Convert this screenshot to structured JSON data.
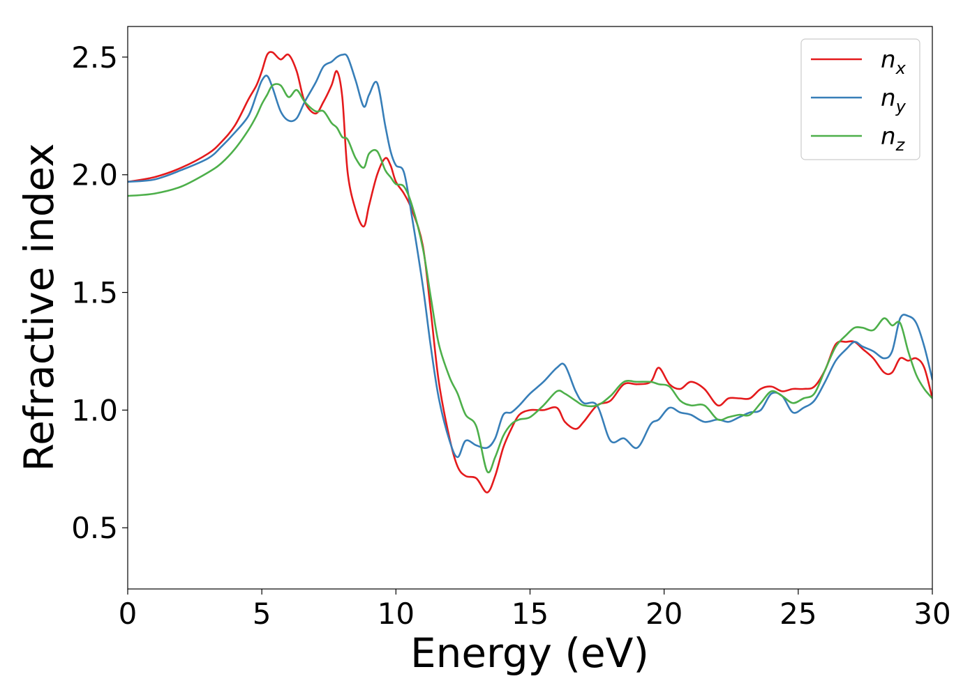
{
  "chart_data": {
    "type": "line",
    "title": "",
    "xlabel": "Energy (eV)",
    "ylabel": "Refractive index",
    "xlim": [
      0,
      30
    ],
    "ylim": [
      0.24,
      2.63
    ],
    "xticks": [
      0,
      5,
      10,
      15,
      20,
      25,
      30
    ],
    "xtick_labels": [
      "0",
      "5",
      "10",
      "15",
      "20",
      "25",
      "30"
    ],
    "yticks": [
      0.5,
      1.0,
      1.5,
      2.0,
      2.5
    ],
    "ytick_labels": [
      "0.5",
      "1.0",
      "1.5",
      "2.0",
      "2.5"
    ],
    "grid": false,
    "legend_position": "top-right",
    "series": [
      {
        "name": "n_x",
        "label_base": "n",
        "label_sub": "x",
        "color": "#e41a1c",
        "x": [
          0,
          1,
          2,
          3,
          3.5,
          4,
          4.5,
          4.8,
          5.0,
          5.2,
          5.4,
          5.7,
          6.0,
          6.3,
          6.6,
          7.0,
          7.3,
          7.6,
          7.8,
          8.0,
          8.2,
          8.5,
          8.8,
          9.0,
          9.3,
          9.6,
          9.8,
          10.0,
          10.3,
          10.6,
          11.0,
          11.3,
          11.6,
          12.0,
          12.3,
          12.6,
          13.0,
          13.4,
          13.7,
          14.0,
          14.3,
          14.6,
          15.0,
          15.5,
          16.0,
          16.3,
          16.7,
          17.0,
          17.5,
          18.0,
          18.5,
          19.0,
          19.5,
          19.8,
          20.2,
          20.6,
          21.0,
          21.5,
          22.0,
          22.4,
          22.8,
          23.2,
          23.6,
          24.0,
          24.4,
          24.8,
          25.2,
          25.6,
          26.0,
          26.4,
          26.8,
          27.1,
          27.4,
          27.8,
          28.2,
          28.5,
          28.8,
          29.1,
          29.4,
          29.7,
          30.0
        ],
        "y": [
          1.97,
          1.99,
          2.03,
          2.09,
          2.14,
          2.21,
          2.32,
          2.38,
          2.44,
          2.51,
          2.52,
          2.49,
          2.51,
          2.44,
          2.31,
          2.26,
          2.31,
          2.38,
          2.44,
          2.33,
          2.01,
          1.85,
          1.78,
          1.87,
          2.0,
          2.07,
          2.04,
          1.97,
          1.92,
          1.85,
          1.7,
          1.42,
          1.12,
          0.88,
          0.76,
          0.72,
          0.71,
          0.65,
          0.72,
          0.84,
          0.92,
          0.98,
          1.0,
          1.0,
          1.01,
          0.95,
          0.92,
          0.95,
          1.02,
          1.04,
          1.11,
          1.11,
          1.12,
          1.18,
          1.11,
          1.09,
          1.12,
          1.09,
          1.02,
          1.05,
          1.05,
          1.05,
          1.09,
          1.1,
          1.08,
          1.09,
          1.09,
          1.1,
          1.17,
          1.28,
          1.29,
          1.29,
          1.26,
          1.22,
          1.16,
          1.16,
          1.22,
          1.21,
          1.22,
          1.18,
          1.05
        ]
      },
      {
        "name": "n_y",
        "label_base": "n",
        "label_sub": "y",
        "color": "#377eb8",
        "x": [
          0,
          1,
          2,
          3,
          3.5,
          4,
          4.5,
          4.8,
          5.0,
          5.2,
          5.4,
          5.7,
          6.0,
          6.3,
          6.6,
          7.0,
          7.3,
          7.6,
          7.8,
          8.0,
          8.2,
          8.5,
          8.8,
          9.0,
          9.3,
          9.6,
          9.8,
          10.0,
          10.3,
          10.6,
          11.0,
          11.3,
          11.6,
          12.0,
          12.3,
          12.6,
          13.0,
          13.4,
          13.7,
          14.0,
          14.3,
          14.6,
          15.0,
          15.5,
          16.0,
          16.3,
          16.7,
          17.0,
          17.5,
          18.0,
          18.5,
          19.0,
          19.5,
          19.8,
          20.2,
          20.6,
          21.0,
          21.5,
          22.0,
          22.4,
          22.8,
          23.2,
          23.6,
          24.0,
          24.4,
          24.8,
          25.2,
          25.6,
          26.0,
          26.4,
          26.8,
          27.1,
          27.4,
          27.8,
          28.2,
          28.5,
          28.8,
          29.1,
          29.4,
          29.7,
          30.0
        ],
        "y": [
          1.97,
          1.98,
          2.02,
          2.07,
          2.12,
          2.18,
          2.25,
          2.34,
          2.4,
          2.42,
          2.37,
          2.27,
          2.23,
          2.24,
          2.31,
          2.39,
          2.46,
          2.48,
          2.5,
          2.51,
          2.5,
          2.4,
          2.29,
          2.34,
          2.39,
          2.21,
          2.1,
          2.04,
          2.01,
          1.82,
          1.53,
          1.27,
          1.05,
          0.87,
          0.8,
          0.87,
          0.85,
          0.84,
          0.88,
          0.98,
          0.99,
          1.02,
          1.07,
          1.12,
          1.18,
          1.19,
          1.08,
          1.03,
          1.02,
          0.87,
          0.88,
          0.84,
          0.94,
          0.96,
          1.01,
          0.99,
          0.98,
          0.95,
          0.96,
          0.95,
          0.97,
          0.99,
          1.0,
          1.07,
          1.06,
          0.99,
          1.01,
          1.04,
          1.12,
          1.21,
          1.26,
          1.29,
          1.27,
          1.25,
          1.22,
          1.25,
          1.39,
          1.4,
          1.37,
          1.27,
          1.13
        ]
      },
      {
        "name": "n_z",
        "label_base": "n",
        "label_sub": "z",
        "color": "#4daf4a",
        "x": [
          0,
          1,
          2,
          3,
          3.5,
          4,
          4.5,
          4.8,
          5.0,
          5.2,
          5.4,
          5.7,
          6.0,
          6.3,
          6.6,
          7.0,
          7.3,
          7.6,
          7.8,
          8.0,
          8.2,
          8.5,
          8.8,
          9.0,
          9.3,
          9.6,
          9.8,
          10.0,
          10.3,
          10.6,
          11.0,
          11.3,
          11.6,
          12.0,
          12.3,
          12.6,
          13.0,
          13.4,
          13.7,
          14.0,
          14.3,
          14.6,
          15.0,
          15.5,
          16.0,
          16.3,
          16.7,
          17.0,
          17.5,
          18.0,
          18.5,
          19.0,
          19.5,
          19.8,
          20.2,
          20.6,
          21.0,
          21.5,
          22.0,
          22.4,
          22.8,
          23.2,
          23.6,
          24.0,
          24.4,
          24.8,
          25.2,
          25.6,
          26.0,
          26.4,
          26.8,
          27.1,
          27.4,
          27.8,
          28.2,
          28.5,
          28.8,
          29.1,
          29.4,
          29.7,
          30.0
        ],
        "y": [
          1.91,
          1.92,
          1.95,
          2.01,
          2.05,
          2.11,
          2.19,
          2.25,
          2.3,
          2.34,
          2.38,
          2.38,
          2.33,
          2.36,
          2.31,
          2.27,
          2.27,
          2.22,
          2.2,
          2.16,
          2.15,
          2.07,
          2.03,
          2.09,
          2.1,
          2.02,
          1.99,
          1.96,
          1.95,
          1.87,
          1.69,
          1.48,
          1.28,
          1.14,
          1.07,
          0.98,
          0.93,
          0.74,
          0.8,
          0.89,
          0.94,
          0.96,
          0.97,
          1.02,
          1.08,
          1.07,
          1.04,
          1.02,
          1.02,
          1.06,
          1.12,
          1.12,
          1.12,
          1.11,
          1.1,
          1.04,
          1.02,
          1.02,
          0.96,
          0.97,
          0.98,
          0.98,
          1.03,
          1.08,
          1.06,
          1.03,
          1.05,
          1.07,
          1.17,
          1.27,
          1.32,
          1.35,
          1.35,
          1.34,
          1.39,
          1.36,
          1.37,
          1.25,
          1.15,
          1.09,
          1.05
        ]
      }
    ]
  }
}
